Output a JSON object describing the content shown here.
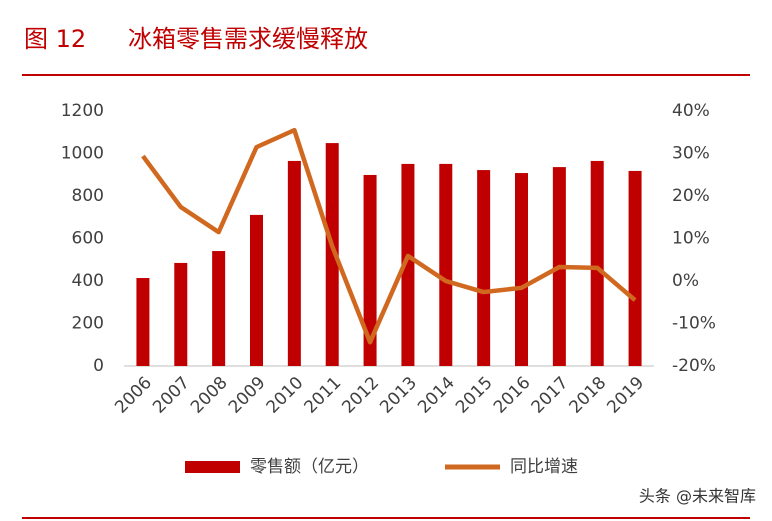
{
  "chart_data": {
    "type": "bar_line",
    "figure_number": "图 12",
    "title": "冰箱零售需求缓慢释放",
    "categories": [
      "2006",
      "2007",
      "2008",
      "2009",
      "2010",
      "2011",
      "2012",
      "2013",
      "2014",
      "2015",
      "2016",
      "2017",
      "2018",
      "2019"
    ],
    "series": [
      {
        "name": "零售额（亿元）",
        "type": "bar",
        "color": "#c00000",
        "values": [
          414,
          485,
          541,
          711,
          965,
          1049,
          899,
          951,
          951,
          922,
          908,
          936,
          965,
          918
        ]
      },
      {
        "name": "同比增速",
        "type": "line",
        "axis": "y2",
        "color": "#d0691f",
        "values": [
          29.4,
          17.4,
          11.5,
          31.5,
          35.5,
          8.2,
          -14.4,
          5.9,
          0,
          -2.6,
          -1.6,
          3.3,
          3.1,
          -4.5
        ]
      }
    ],
    "ylim": [
      0,
      1200
    ],
    "yticks": [
      0,
      200,
      400,
      600,
      800,
      1000,
      1200
    ],
    "y2lim": [
      -20,
      40
    ],
    "y2ticks": [
      {
        "value": -20,
        "label": "-20%"
      },
      {
        "value": -10,
        "label": "-10%"
      },
      {
        "value": 0,
        "label": "0%"
      },
      {
        "value": 10,
        "label": "10%"
      },
      {
        "value": 20,
        "label": "20%"
      },
      {
        "value": 30,
        "label": "30%"
      },
      {
        "value": 40,
        "label": "40%"
      }
    ],
    "grid": false,
    "legend": "bottom"
  },
  "watermark": "头条 @未来智库"
}
